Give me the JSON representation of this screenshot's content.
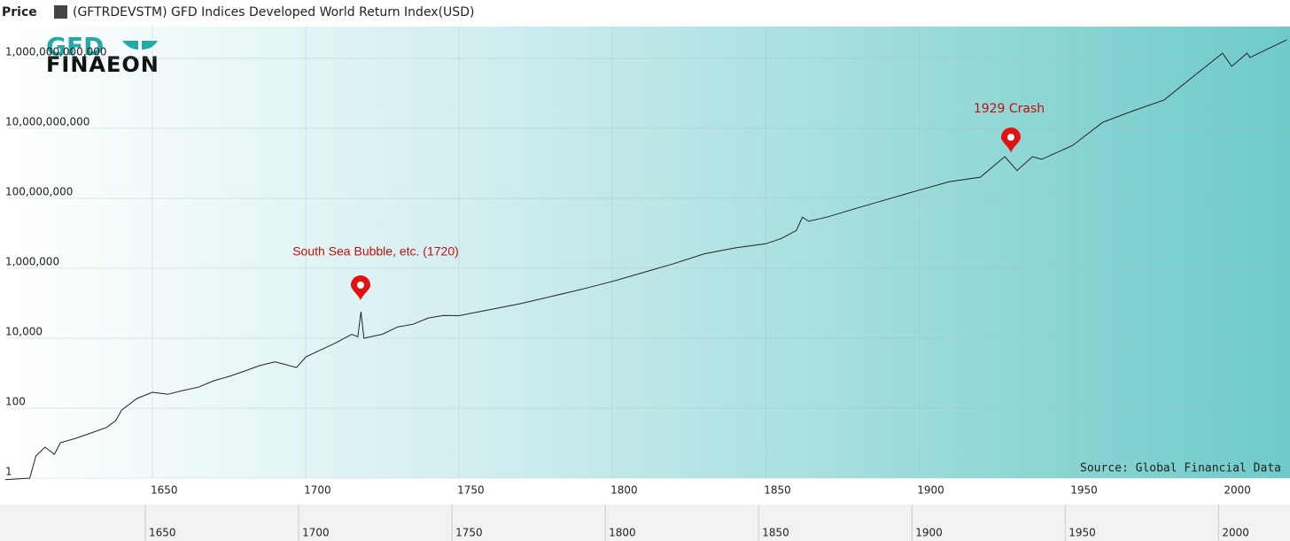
{
  "header": {
    "label": "Price",
    "legend": "(GFTRDEVSTM) GFD Indices Developed World Return Index(USD)"
  },
  "logo": {
    "top": "GFD",
    "bottom": "FINAEON"
  },
  "chart_data": {
    "type": "line",
    "yscale": "log",
    "grid": true,
    "source": "Source: Global Financial Data",
    "xlim": [
      1602.6,
      2021
    ],
    "ylim": [
      1,
      8100000000000.0
    ],
    "xticks": [
      1650,
      1700,
      1750,
      1800,
      1850,
      1900,
      1950,
      2000
    ],
    "yticks": [
      1,
      100,
      {
        "value": 10000,
        "label": "10,000"
      },
      {
        "value": 1000000,
        "label": "1,000,000"
      },
      {
        "value": 100000000,
        "label": "100,000,000"
      },
      {
        "value": 10000000000,
        "label": "10,000,000,000"
      },
      {
        "value": 1000000000000,
        "label": "1,000,000,000,000"
      }
    ],
    "annotations": [
      {
        "text": "South Sea Bubble, etc. (1720)"
      },
      {
        "text": "1929 Crash"
      }
    ],
    "x": [
      1602,
      1610,
      1612,
      1615,
      1618,
      1620,
      1625,
      1630,
      1635,
      1638,
      1640,
      1645,
      1650,
      1655,
      1660,
      1665,
      1670,
      1675,
      1680,
      1685,
      1690,
      1697,
      1700,
      1705,
      1710,
      1715,
      1717,
      1718,
      1719,
      1725,
      1730,
      1735,
      1740,
      1745,
      1750,
      1760,
      1770,
      1780,
      1790,
      1800,
      1810,
      1820,
      1830,
      1840,
      1850,
      1855,
      1860,
      1862,
      1864,
      1870,
      1880,
      1890,
      1900,
      1910,
      1920,
      1928,
      1932,
      1937,
      1940,
      1950,
      1960,
      1970,
      1980,
      1990,
      1999,
      2002,
      2007,
      2008,
      2015,
      2020
    ],
    "series": [
      {
        "name": "(GFTRDEVSTM) GFD Indices Developed World Return Index(USD)",
        "color": "#222222",
        "values": [
          0.9,
          1,
          4.3,
          7.7,
          4.8,
          10.3,
          13.8,
          19.5,
          28,
          44,
          89,
          190,
          285,
          250,
          320,
          400,
          610,
          810,
          1150,
          1650,
          2100,
          1450,
          2900,
          4700,
          7500,
          13000,
          11000,
          57000,
          10000,
          13000,
          21000,
          25000,
          38000,
          45000,
          44000,
          65000,
          97000,
          155000,
          250000,
          420000,
          750000,
          1350000,
          2600000,
          3800000,
          5000000,
          7000000,
          12000000,
          29000000,
          22000000,
          29000000,
          53000000,
          95000000,
          170000000,
          300000000,
          400000000,
          1550000000,
          620000000,
          1550000000,
          1300000000,
          3200000000,
          15000000000,
          32000000000,
          65000000000,
          330000000000,
          1400000000000,
          590000000000,
          1400000000000,
          1060000000000,
          2100000000000,
          3400000000000
        ]
      }
    ]
  }
}
